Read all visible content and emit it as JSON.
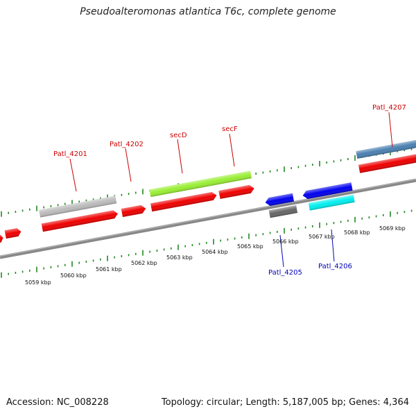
{
  "header": {
    "title": "Pseudoalteromonas atlantica T6c, complete genome"
  },
  "footer": {
    "accession": "Accession: NC_008228",
    "topology": "Topology: circular; Length: 5,187,005 bp; Genes: 4,364"
  },
  "scale_labels": [
    "5059 kbp",
    "5060 kbp",
    "5061 kbp",
    "5062 kbp",
    "5063 kbp",
    "5064 kbp",
    "5065 kbp",
    "5066 kbp",
    "5067 kbp",
    "5068 kbp",
    "5069 kbp"
  ],
  "gene_labels": {
    "patl_4201": "Patl_4201",
    "patl_4202": "Patl_4202",
    "secD": "secD",
    "secF": "secF",
    "patl_4207": "Patl_4207",
    "patl_4205": "Patl_4205",
    "patl_4206": "Patl_4206"
  },
  "colors": {
    "cds_forward": "#ee0000",
    "cds_reverse": "#0000ee",
    "rrna_highlight": "#99ee33",
    "gray_feature": "#bbbbbb",
    "dark_gray_feature": "#666666",
    "cyan_feature": "#00eeee",
    "steel_feature": "#4a7fb0",
    "tick": "#228822",
    "backbone": "#888888"
  }
}
